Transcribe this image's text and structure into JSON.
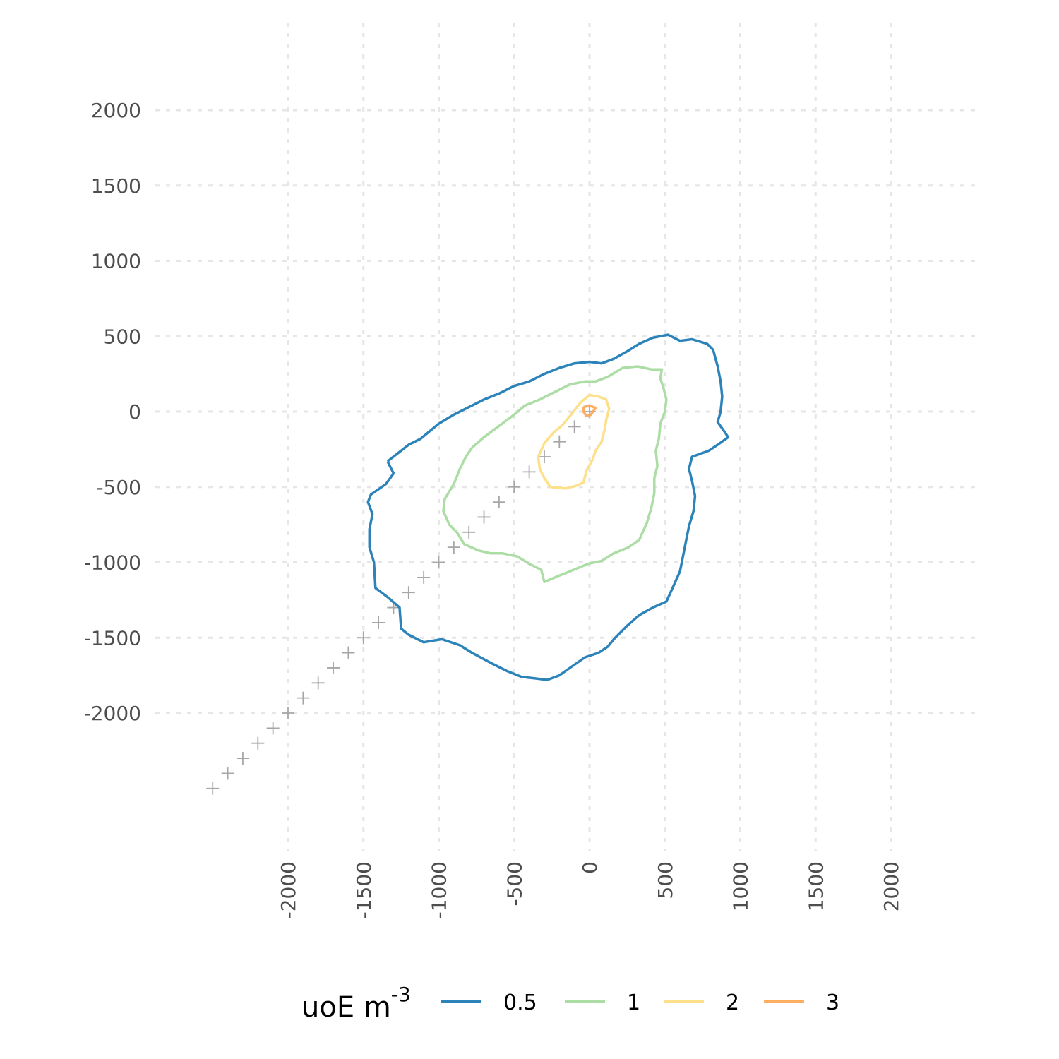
{
  "chart_data": {
    "type": "contour",
    "x_ticks": [
      -2000,
      -1500,
      -1000,
      -500,
      0,
      500,
      1000,
      1500,
      2000
    ],
    "y_ticks": [
      2000,
      1500,
      1000,
      500,
      0,
      -500,
      -1000,
      -1500,
      -2000
    ],
    "x_tick_labels": [
      "-2000",
      "-1500",
      "-1000",
      "-500",
      "0",
      "500",
      "1000",
      "1500",
      "2000"
    ],
    "y_tick_labels": [
      "2000",
      "1500",
      "1000",
      "500",
      "0",
      "-500",
      "-1000",
      "-1500",
      "-2000"
    ],
    "xlim": [
      -2600,
      2600
    ],
    "ylim": [
      -2900,
      2600
    ],
    "grid": true,
    "legend": {
      "position": "bottom",
      "title_base": "uoE m",
      "title_exponent": "-3",
      "entries": [
        {
          "label": "0.5",
          "color": "#2b83ba"
        },
        {
          "label": "1",
          "color": "#abdda4"
        },
        {
          "label": "2",
          "color": "#fee08b"
        },
        {
          "label": "3",
          "color": "#fdae61"
        }
      ]
    },
    "crosses": [
      [
        -2500,
        -2500
      ],
      [
        -2400,
        -2400
      ],
      [
        -2300,
        -2300
      ],
      [
        -2200,
        -2200
      ],
      [
        -2100,
        -2100
      ],
      [
        -2000,
        -2000
      ],
      [
        -1900,
        -1900
      ],
      [
        -1800,
        -1800
      ],
      [
        -1700,
        -1700
      ],
      [
        -1600,
        -1600
      ],
      [
        -1500,
        -1500
      ],
      [
        -1400,
        -1400
      ],
      [
        -1300,
        -1300
      ],
      [
        -1200,
        -1200
      ],
      [
        -1100,
        -1100
      ],
      [
        -1000,
        -1000
      ],
      [
        -900,
        -900
      ],
      [
        -800,
        -800
      ],
      [
        -700,
        -700
      ],
      [
        -600,
        -600
      ],
      [
        -500,
        -500
      ],
      [
        -400,
        -400
      ],
      [
        -300,
        -300
      ],
      [
        -200,
        -200
      ],
      [
        -100,
        -100
      ],
      [
        0,
        0
      ]
    ],
    "series": [
      {
        "name": "0.5",
        "color": "#2b83ba",
        "points": [
          [
            -1340,
            -330
          ],
          [
            -1200,
            -220
          ],
          [
            -1120,
            -180
          ],
          [
            -1000,
            -80
          ],
          [
            -900,
            -20
          ],
          [
            -800,
            30
          ],
          [
            -700,
            80
          ],
          [
            -600,
            120
          ],
          [
            -500,
            170
          ],
          [
            -400,
            200
          ],
          [
            -300,
            250
          ],
          [
            -200,
            290
          ],
          [
            -100,
            320
          ],
          [
            0,
            330
          ],
          [
            80,
            320
          ],
          [
            160,
            350
          ],
          [
            250,
            400
          ],
          [
            330,
            450
          ],
          [
            420,
            490
          ],
          [
            520,
            510
          ],
          [
            600,
            470
          ],
          [
            680,
            480
          ],
          [
            780,
            450
          ],
          [
            820,
            410
          ],
          [
            850,
            300
          ],
          [
            870,
            200
          ],
          [
            880,
            100
          ],
          [
            870,
            0
          ],
          [
            850,
            -70
          ],
          [
            900,
            -140
          ],
          [
            920,
            -170
          ],
          [
            850,
            -220
          ],
          [
            790,
            -260
          ],
          [
            680,
            -300
          ],
          [
            660,
            -380
          ],
          [
            680,
            -460
          ],
          [
            700,
            -560
          ],
          [
            690,
            -660
          ],
          [
            660,
            -760
          ],
          [
            640,
            -860
          ],
          [
            620,
            -960
          ],
          [
            600,
            -1060
          ],
          [
            560,
            -1150
          ],
          [
            510,
            -1260
          ],
          [
            420,
            -1300
          ],
          [
            330,
            -1350
          ],
          [
            250,
            -1420
          ],
          [
            170,
            -1500
          ],
          [
            120,
            -1560
          ],
          [
            60,
            -1600
          ],
          [
            -30,
            -1630
          ],
          [
            -130,
            -1700
          ],
          [
            -200,
            -1750
          ],
          [
            -280,
            -1780
          ],
          [
            -360,
            -1770
          ],
          [
            -450,
            -1760
          ],
          [
            -550,
            -1720
          ],
          [
            -650,
            -1670
          ],
          [
            -780,
            -1600
          ],
          [
            -860,
            -1550
          ],
          [
            -980,
            -1510
          ],
          [
            -1100,
            -1530
          ],
          [
            -1200,
            -1480
          ],
          [
            -1250,
            -1440
          ],
          [
            -1260,
            -1300
          ],
          [
            -1340,
            -1230
          ],
          [
            -1420,
            -1170
          ],
          [
            -1430,
            -1000
          ],
          [
            -1460,
            -900
          ],
          [
            -1460,
            -780
          ],
          [
            -1440,
            -680
          ],
          [
            -1470,
            -600
          ],
          [
            -1450,
            -550
          ],
          [
            -1350,
            -480
          ],
          [
            -1300,
            -410
          ],
          [
            -1340,
            -330
          ]
        ]
      },
      {
        "name": "1",
        "color": "#abdda4",
        "points": [
          [
            -780,
            -240
          ],
          [
            -700,
            -170
          ],
          [
            -580,
            -80
          ],
          [
            -500,
            -20
          ],
          [
            -430,
            40
          ],
          [
            -330,
            80
          ],
          [
            -230,
            130
          ],
          [
            -130,
            180
          ],
          [
            -30,
            200
          ],
          [
            40,
            200
          ],
          [
            120,
            230
          ],
          [
            220,
            290
          ],
          [
            320,
            300
          ],
          [
            410,
            280
          ],
          [
            480,
            280
          ],
          [
            470,
            220
          ],
          [
            490,
            160
          ],
          [
            510,
            80
          ],
          [
            500,
            0
          ],
          [
            470,
            -80
          ],
          [
            460,
            -180
          ],
          [
            440,
            -260
          ],
          [
            450,
            -360
          ],
          [
            430,
            -440
          ],
          [
            430,
            -540
          ],
          [
            410,
            -640
          ],
          [
            380,
            -740
          ],
          [
            330,
            -850
          ],
          [
            260,
            -900
          ],
          [
            160,
            -940
          ],
          [
            80,
            -990
          ],
          [
            -10,
            -1010
          ],
          [
            -130,
            -1060
          ],
          [
            -230,
            -1100
          ],
          [
            -300,
            -1130
          ],
          [
            -320,
            -1050
          ],
          [
            -400,
            -1010
          ],
          [
            -480,
            -960
          ],
          [
            -580,
            -940
          ],
          [
            -660,
            -940
          ],
          [
            -740,
            -920
          ],
          [
            -830,
            -880
          ],
          [
            -880,
            -800
          ],
          [
            -930,
            -750
          ],
          [
            -970,
            -660
          ],
          [
            -960,
            -580
          ],
          [
            -900,
            -480
          ],
          [
            -860,
            -380
          ],
          [
            -820,
            -300
          ],
          [
            -780,
            -240
          ]
        ]
      },
      {
        "name": "2",
        "color": "#fee08b",
        "points": [
          [
            -130,
            -30
          ],
          [
            -60,
            60
          ],
          [
            0,
            110
          ],
          [
            60,
            100
          ],
          [
            110,
            80
          ],
          [
            130,
            20
          ],
          [
            110,
            -60
          ],
          [
            100,
            -120
          ],
          [
            80,
            -200
          ],
          [
            40,
            -260
          ],
          [
            20,
            -320
          ],
          [
            -20,
            -390
          ],
          [
            -40,
            -470
          ],
          [
            -80,
            -490
          ],
          [
            -160,
            -510
          ],
          [
            -260,
            -500
          ],
          [
            -300,
            -440
          ],
          [
            -330,
            -380
          ],
          [
            -340,
            -300
          ],
          [
            -300,
            -210
          ],
          [
            -240,
            -140
          ],
          [
            -180,
            -90
          ],
          [
            -130,
            -30
          ]
        ]
      },
      {
        "name": "3",
        "color": "#fdae61",
        "points": [
          [
            -40,
            30
          ],
          [
            0,
            40
          ],
          [
            40,
            25
          ],
          [
            10,
            -20
          ],
          [
            -20,
            -30
          ],
          [
            -40,
            0
          ],
          [
            -40,
            30
          ]
        ]
      }
    ]
  }
}
